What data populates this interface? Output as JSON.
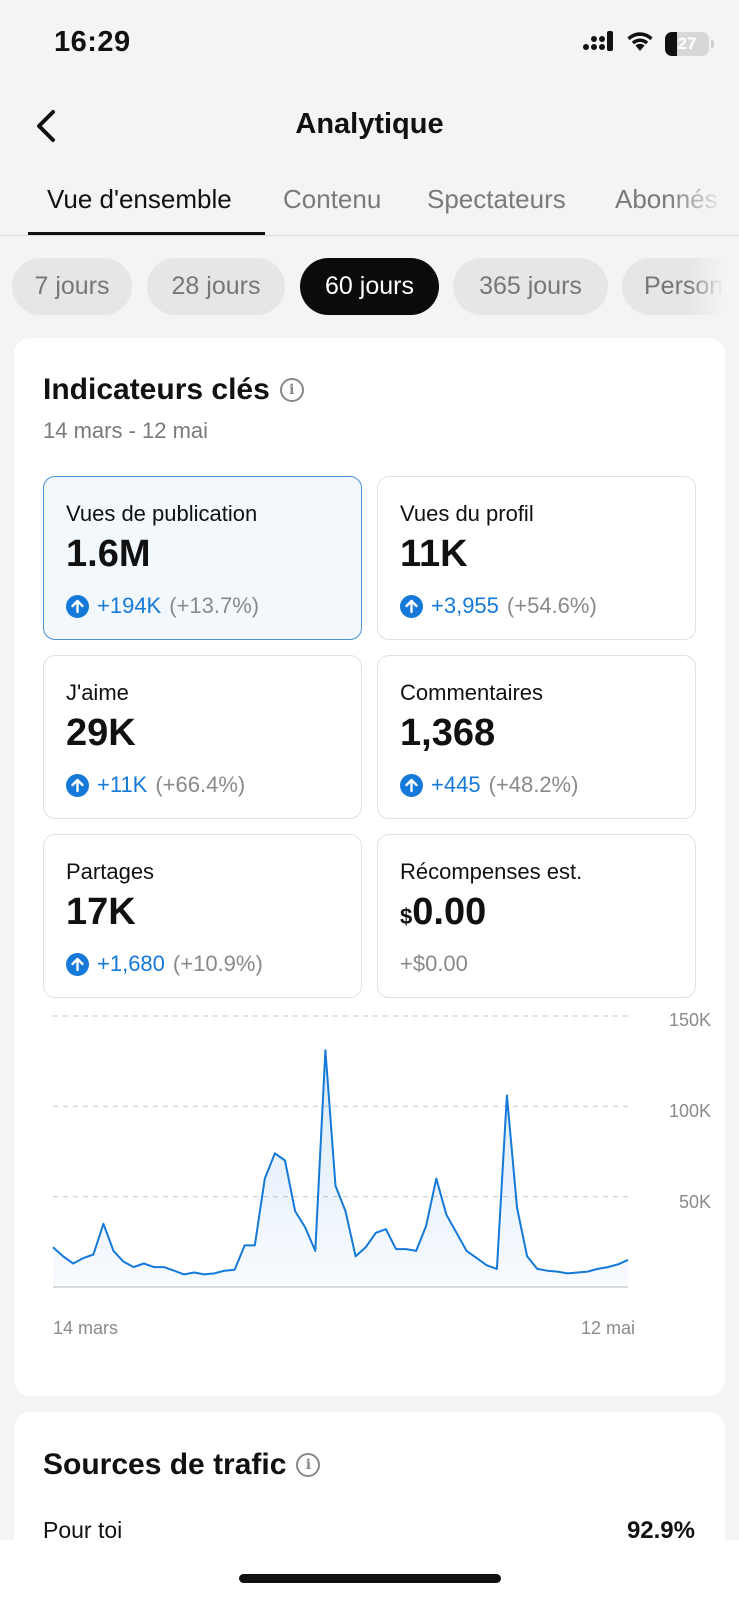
{
  "status": {
    "time": "16:29",
    "battery": "27"
  },
  "header": {
    "title": "Analytique"
  },
  "tabs": [
    {
      "label": "Vue d'ensemble"
    },
    {
      "label": "Contenu"
    },
    {
      "label": "Spectateurs"
    },
    {
      "label": "Abonnés"
    }
  ],
  "periods": [
    {
      "label": "7 jours"
    },
    {
      "label": "28 jours"
    },
    {
      "label": "60 jours"
    },
    {
      "label": "365 jours"
    },
    {
      "label": "Personnalisé"
    }
  ],
  "key_metrics": {
    "title": "Indicateurs clés",
    "date_range": "14 mars - 12 mai",
    "cards": [
      {
        "label": "Vues de publication",
        "value": "1.6M",
        "change": "+194K",
        "pct": "(+13.7%)"
      },
      {
        "label": "Vues du profil",
        "value": "11K",
        "change": "+3,955",
        "pct": "(+54.6%)"
      },
      {
        "label": "J'aime",
        "value": "29K",
        "change": "+11K",
        "pct": "(+66.4%)"
      },
      {
        "label": "Commentaires",
        "value": "1,368",
        "change": "+445",
        "pct": "(+48.2%)"
      },
      {
        "label": "Partages",
        "value": "17K",
        "change": "+1,680",
        "pct": "(+10.9%)"
      },
      {
        "label": "Récompenses est.",
        "currency": "$",
        "value": "0.00",
        "change": "+$0.00"
      }
    ]
  },
  "colors": {
    "accent": "#1479d8",
    "selected_border": "#4a8fd6"
  },
  "chart_data": {
    "type": "area",
    "x_start": "14 mars",
    "x_end": "12 mai",
    "y_ticks": [
      "150K",
      "100K",
      "50K"
    ],
    "ylim": [
      0,
      150000
    ],
    "grid": true,
    "values": [
      22000,
      17000,
      13000,
      16000,
      18000,
      35000,
      20000,
      14000,
      11000,
      13000,
      11000,
      11000,
      9000,
      7000,
      8000,
      7000,
      7500,
      9000,
      9500,
      23000,
      23000,
      60000,
      74000,
      70000,
      42000,
      33000,
      20000,
      131000,
      56000,
      42000,
      17000,
      22000,
      30000,
      32000,
      21000,
      21000,
      20000,
      34000,
      60000,
      40000,
      30000,
      20000,
      16000,
      12000,
      10000,
      106000,
      44000,
      17000,
      10000,
      9000,
      8500,
      7500,
      8000,
      8500,
      10000,
      11000,
      12500,
      15000
    ]
  },
  "traffic": {
    "title": "Sources de trafic",
    "rows": [
      {
        "name": "Pour toi",
        "pct": "92.9%"
      }
    ]
  }
}
